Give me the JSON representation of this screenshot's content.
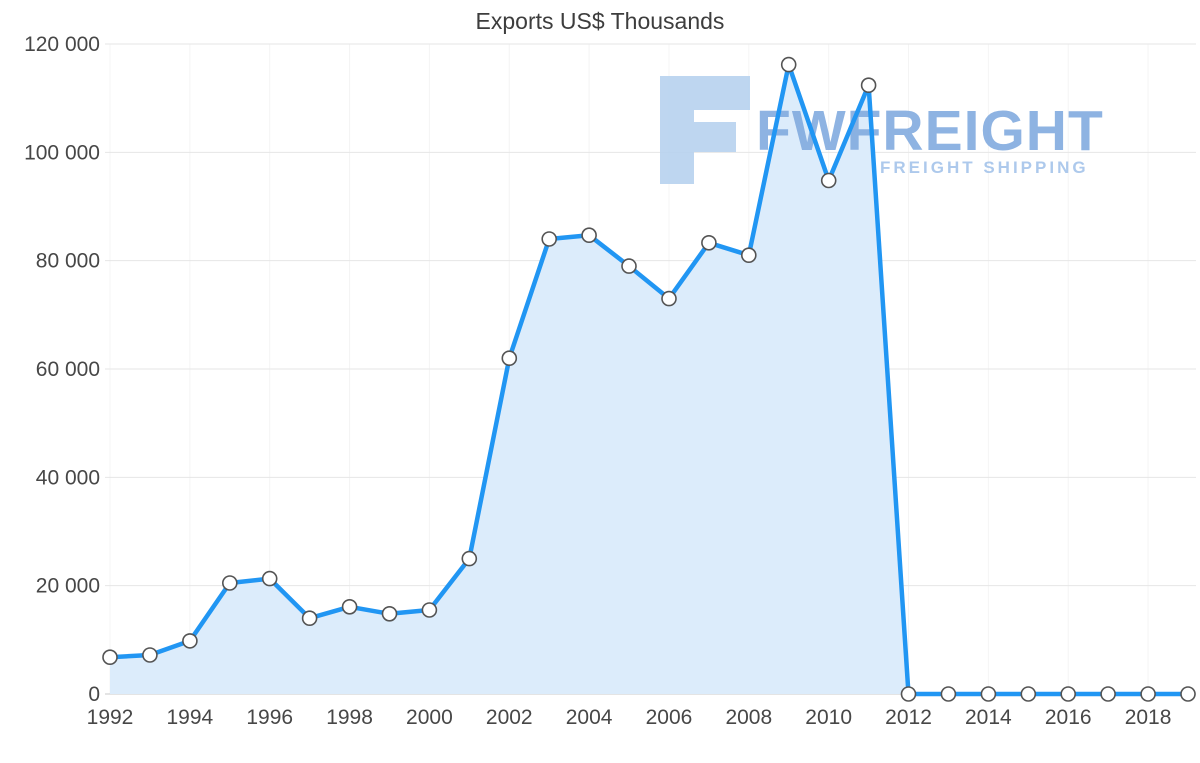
{
  "chart_data": {
    "type": "area",
    "title": "Exports US$ Thousands",
    "series_name": "Exports US$ Thousands",
    "x": [
      1992,
      1993,
      1994,
      1995,
      1996,
      1997,
      1998,
      1999,
      2000,
      2001,
      2002,
      2003,
      2004,
      2005,
      2006,
      2007,
      2008,
      2009,
      2010,
      2011,
      2012,
      2013,
      2014,
      2015,
      2016,
      2017,
      2018,
      2019
    ],
    "values": [
      6800,
      7200,
      9800,
      20500,
      21300,
      14000,
      16100,
      14800,
      15500,
      25000,
      62000,
      84000,
      84700,
      79000,
      73000,
      83300,
      81000,
      116200,
      94800,
      112400,
      0,
      0,
      0,
      0,
      0,
      0,
      0,
      0
    ],
    "xlim": [
      1992,
      2019
    ],
    "ylim": [
      0,
      120000
    ],
    "x_ticks": [
      1992,
      1994,
      1996,
      1998,
      2000,
      2002,
      2004,
      2006,
      2008,
      2010,
      2012,
      2014,
      2016,
      2018
    ],
    "x_tick_labels": [
      "1992",
      "1994",
      "1996",
      "1998",
      "2000",
      "2002",
      "2004",
      "2006",
      "2008",
      "2010",
      "2012",
      "2014",
      "2016",
      "2018"
    ],
    "y_ticks": [
      0,
      20000,
      40000,
      60000,
      80000,
      100000,
      120000
    ],
    "y_tick_labels": [
      "0",
      "20 000",
      "40 000",
      "60 000",
      "80 000",
      "100 000",
      "120 000"
    ],
    "grid": true,
    "legend": false,
    "colors": {
      "line": "#2196f3",
      "area": "#dcecfb",
      "marker_fill": "#ffffff",
      "marker_stroke": "#545454",
      "grid": "#e6e6e6",
      "grid_vertical": "#f4f4f4",
      "axis_line": "#c9c9c9",
      "axis_text": "#474747",
      "title_text": "#3d3d3d"
    }
  },
  "watermark": {
    "text": "FWFREIGHT",
    "subtext": "FREIGHT SHIPPING",
    "colors": {
      "logo": "#b7d2ef",
      "text": "#82abdf",
      "subtext": "#a5c4ea"
    }
  }
}
